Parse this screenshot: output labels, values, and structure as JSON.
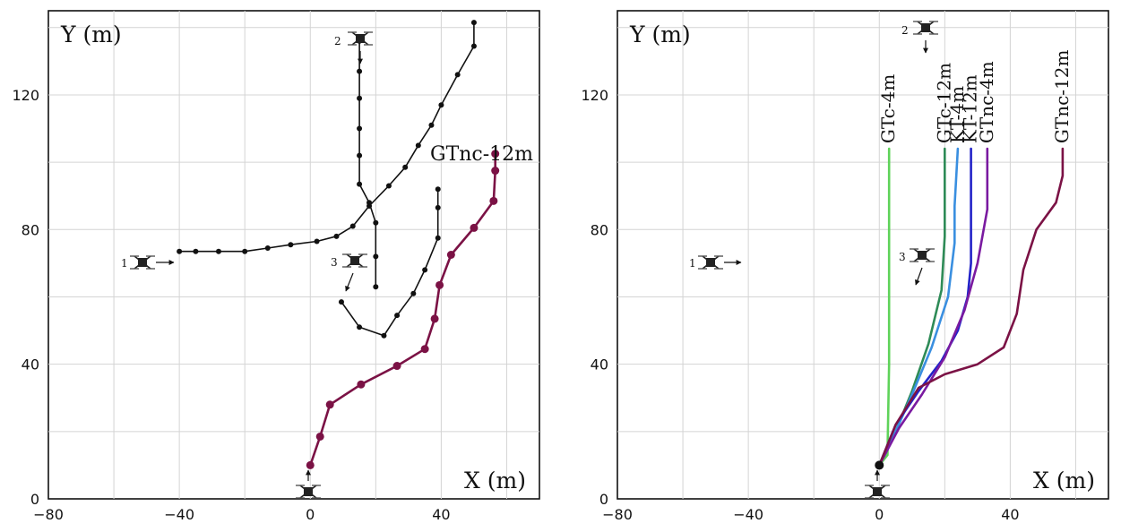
{
  "chart_data": [
    {
      "type": "line",
      "title": "",
      "xlabel": "X (m)",
      "ylabel": "Y (m)",
      "xlim": [
        -80,
        70
      ],
      "ylim": [
        0,
        145
      ],
      "xticks": [
        -80,
        -40,
        0,
        40
      ],
      "yticks": [
        0,
        40,
        80,
        120
      ],
      "grid": true,
      "series": [
        {
          "name": "",
          "color": "#111111",
          "markers": true,
          "points": [
            [
              -40,
              73.5
            ],
            [
              -35,
              73.5
            ],
            [
              -28,
              73.5
            ],
            [
              -20,
              73.5
            ],
            [
              -13,
              74.5
            ],
            [
              -6,
              75.5
            ],
            [
              2,
              76.5
            ],
            [
              8,
              78
            ],
            [
              13,
              81
            ],
            [
              18,
              87
            ],
            [
              24,
              93
            ],
            [
              29,
              98.5
            ],
            [
              33,
              105
            ],
            [
              37,
              111
            ],
            [
              40,
              117
            ],
            [
              45,
              126
            ],
            [
              50,
              134.5
            ],
            [
              50,
              141.5
            ]
          ]
        },
        {
          "name": "",
          "color": "#111111",
          "markers": true,
          "points": [
            [
              15,
              136
            ],
            [
              15,
              127
            ],
            [
              15,
              119
            ],
            [
              15,
              110
            ],
            [
              15,
              102
            ],
            [
              15,
              93.5
            ],
            [
              18,
              88
            ],
            [
              20,
              82
            ],
            [
              20,
              72
            ],
            [
              20,
              63
            ]
          ]
        },
        {
          "name": "",
          "color": "#111111",
          "markers": true,
          "points": [
            [
              9.5,
              58.5
            ],
            [
              15,
              51
            ],
            [
              22.5,
              48.5
            ],
            [
              26.5,
              54.5
            ],
            [
              31.5,
              61
            ],
            [
              35,
              68
            ],
            [
              39,
              77.5
            ],
            [
              39,
              86.5
            ],
            [
              39,
              92
            ]
          ]
        },
        {
          "name": "GTnc-12m",
          "color": "#7b1245",
          "markers": true,
          "points": [
            [
              0,
              10
            ],
            [
              3,
              18.5
            ],
            [
              6,
              28
            ],
            [
              15.5,
              34
            ],
            [
              26.5,
              39.5
            ],
            [
              35,
              44.5
            ],
            [
              38,
              53.5
            ],
            [
              39.5,
              63.5
            ],
            [
              43,
              72.5
            ],
            [
              50,
              80.5
            ],
            [
              56,
              88.5
            ],
            [
              56.5,
              97.5
            ],
            [
              56.5,
              102.5
            ]
          ]
        }
      ]
    },
    {
      "type": "line",
      "title": "",
      "xlabel": "X (m)",
      "ylabel": "Y (m)",
      "xlim": [
        -80,
        70
      ],
      "ylim": [
        0,
        145
      ],
      "xticks": [
        -80,
        -40,
        0,
        40
      ],
      "yticks": [
        0,
        40,
        80,
        120
      ],
      "grid": true,
      "start_point": [
        0,
        10
      ],
      "series": [
        {
          "name": "GTc-4m",
          "color": "#5fd35a",
          "points": [
            [
              0,
              10
            ],
            [
              2.5,
              13
            ],
            [
              3,
              40
            ],
            [
              3,
              104
            ]
          ]
        },
        {
          "name": "GTc-12m",
          "color": "#2e8b57",
          "points": [
            [
              0,
              10
            ],
            [
              5,
              20
            ],
            [
              10,
              32
            ],
            [
              15,
              46
            ],
            [
              19,
              62
            ],
            [
              20,
              78
            ],
            [
              20,
              104
            ]
          ]
        },
        {
          "name": "KT-4m",
          "color": "#3a8fe0",
          "points": [
            [
              0,
              10
            ],
            [
              5,
              20
            ],
            [
              10,
              31
            ],
            [
              16,
              45
            ],
            [
              21,
              60
            ],
            [
              23,
              76
            ],
            [
              23,
              87
            ],
            [
              24,
              104
            ]
          ]
        },
        {
          "name": "KT-12m",
          "color": "#2323c8",
          "points": [
            [
              0,
              10
            ],
            [
              5,
              22
            ],
            [
              12,
              32
            ],
            [
              19,
              41
            ],
            [
              24,
              50
            ],
            [
              27,
              60
            ],
            [
              28,
              70
            ],
            [
              28,
              104
            ]
          ]
        },
        {
          "name": "GTnc-4m",
          "color": "#7a1aa0",
          "points": [
            [
              0,
              10
            ],
            [
              6,
              21
            ],
            [
              13,
              31
            ],
            [
              20,
              42
            ],
            [
              26,
              56
            ],
            [
              30,
              70
            ],
            [
              33,
              86
            ],
            [
              33,
              104
            ]
          ]
        },
        {
          "name": "GTnc-12m",
          "color": "#7b1245",
          "points": [
            [
              0,
              10
            ],
            [
              5,
              22
            ],
            [
              12,
              33
            ],
            [
              20,
              37
            ],
            [
              30,
              40
            ],
            [
              38,
              45
            ],
            [
              42,
              55
            ],
            [
              44,
              68
            ],
            [
              48,
              80
            ],
            [
              54,
              88
            ],
            [
              56,
              96
            ],
            [
              56,
              104
            ]
          ]
        }
      ]
    }
  ],
  "drones": [
    {
      "label": "1",
      "arrow": "right"
    },
    {
      "label": "2",
      "arrow": "down"
    },
    {
      "label": "3",
      "arrow": "down-left"
    },
    {
      "label": "",
      "arrow": "up"
    }
  ]
}
